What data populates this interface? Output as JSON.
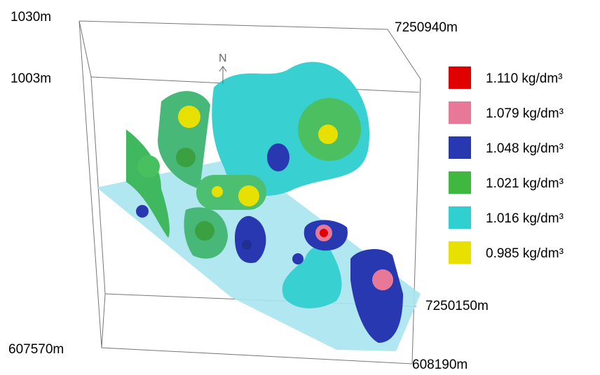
{
  "axes": {
    "top_elevation": "1030m",
    "mid_elevation": "1003m",
    "north_back": "7250940m",
    "north_front": "7250150m",
    "east_left": "607570m",
    "east_right": "608190m",
    "north_arrow": "N"
  },
  "legend": [
    {
      "label": "1.110 kg/dm³",
      "color": "#e00000"
    },
    {
      "label": "1.079 kg/dm³",
      "color": "#e87898"
    },
    {
      "label": "1.048 kg/dm³",
      "color": "#2838b0"
    },
    {
      "label": "1.021 kg/dm³",
      "color": "#40b840"
    },
    {
      "label": "1.016 kg/dm³",
      "color": "#30d0d0"
    },
    {
      "label": "0.985 kg/dm³",
      "color": "#e8e000"
    }
  ]
}
